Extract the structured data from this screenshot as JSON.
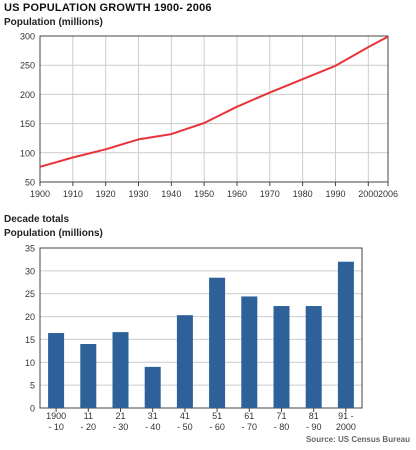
{
  "title": "US POPULATION GROWTH 1900- 2006",
  "source": "Source: US Census Bureau",
  "colors": {
    "line": "#e8333a",
    "bar": "#2e6099",
    "grid": "#cccccc",
    "axis": "#444444"
  },
  "chart_data": [
    {
      "type": "line",
      "ylabel": "Population (millions)",
      "ylim": [
        50,
        300
      ],
      "yticks": [
        50,
        100,
        150,
        200,
        250,
        300
      ],
      "xlim": [
        1900,
        2006
      ],
      "xticks": [
        1900,
        1910,
        1920,
        1930,
        1940,
        1950,
        1960,
        1970,
        1980,
        1990,
        2000,
        2006
      ],
      "grid": true,
      "series": [
        {
          "x": [
            1900,
            1910,
            1920,
            1930,
            1940,
            1950,
            1960,
            1970,
            1980,
            1990,
            2000,
            2006
          ],
          "y": [
            76,
            92,
            106,
            123,
            132,
            151,
            179,
            203,
            226,
            249,
            281,
            299
          ]
        }
      ]
    },
    {
      "type": "bar",
      "subtitle": "Decade totals",
      "ylabel": "Population (millions)",
      "ylim": [
        0,
        35
      ],
      "yticks": [
        0,
        5,
        10,
        15,
        20,
        25,
        30,
        35
      ],
      "grid": true,
      "categories": [
        [
          "1900",
          "- 10"
        ],
        [
          "11",
          "- 20"
        ],
        [
          "21",
          "- 30"
        ],
        [
          "31",
          "- 40"
        ],
        [
          "41",
          "- 50"
        ],
        [
          "51",
          "- 60"
        ],
        [
          "61",
          "- 70"
        ],
        [
          "71",
          "- 80"
        ],
        [
          "81",
          "- 90"
        ],
        [
          "91 -",
          "2000"
        ]
      ],
      "values": [
        16.4,
        14.0,
        16.6,
        9.0,
        20.3,
        28.5,
        24.4,
        22.3,
        22.3,
        32.0
      ]
    }
  ]
}
